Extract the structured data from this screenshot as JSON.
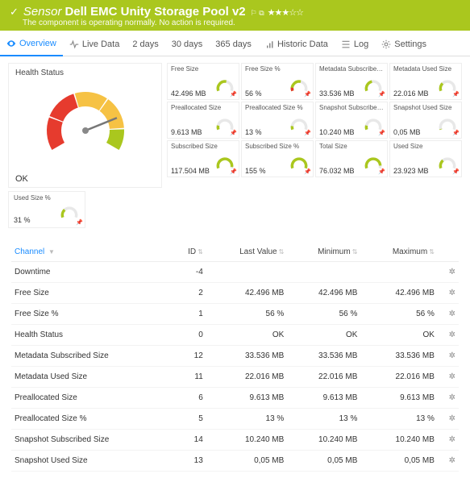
{
  "header": {
    "sensor_prefix": "Sensor",
    "title": "Dell EMC Unity Storage Pool v2",
    "sup": "⚐ ⧉",
    "stars": "★★★☆☆",
    "subtitle": "The component is operating normally. No action is required."
  },
  "tabs": {
    "overview": "Overview",
    "live": "Live Data",
    "days2": "2 days",
    "days30": "30 days",
    "days365": "365 days",
    "historic": "Historic Data",
    "log": "Log",
    "settings": "Settings"
  },
  "health": {
    "title": "Health Status",
    "status": "OK",
    "gauge": {
      "segments": [
        {
          "start": -210,
          "end": -160,
          "color": "#e63b2e"
        },
        {
          "start": -158,
          "end": -108,
          "color": "#e63b2e"
        },
        {
          "start": -106,
          "end": -56,
          "color": "#f6c244"
        },
        {
          "start": -54,
          "end": -4,
          "color": "#f6c244"
        },
        {
          "start": -2,
          "end": 30,
          "color": "#aac71e"
        }
      ],
      "needle_angle": -22
    }
  },
  "metrics": [
    {
      "title": "Free Size",
      "value": "42.496 MB",
      "frac": 0.55,
      "warn": false
    },
    {
      "title": "Free Size %",
      "value": "56 %",
      "frac": 0.56,
      "warn": true
    },
    {
      "title": "Metadata Subscribed Size",
      "value": "33.536 MB",
      "frac": 0.45,
      "warn": false
    },
    {
      "title": "Metadata Used Size",
      "value": "22.016 MB",
      "frac": 0.3,
      "warn": false
    },
    {
      "title": "Preallocated Size",
      "value": "9.613 MB",
      "frac": 0.15,
      "warn": false
    },
    {
      "title": "Preallocated Size %",
      "value": "13 %",
      "frac": 0.13,
      "warn": false
    },
    {
      "title": "Snapshot Subscribed Size",
      "value": "10.240 MB",
      "frac": 0.15,
      "warn": false
    },
    {
      "title": "Snapshot Used Size",
      "value": "0,05 MB",
      "frac": 0.02,
      "warn": false
    },
    {
      "title": "Subscribed Size",
      "value": "117.504 MB",
      "frac": 0.95,
      "warn": false
    },
    {
      "title": "Subscribed Size %",
      "value": "155 %",
      "frac": 1.0,
      "warn": false
    },
    {
      "title": "Total Size",
      "value": "76.032 MB",
      "frac": 0.9,
      "warn": false
    },
    {
      "title": "Used Size",
      "value": "23.923 MB",
      "frac": 0.32,
      "warn": false
    }
  ],
  "used_pct": {
    "title": "Used Size %",
    "value": "31 %",
    "frac": 0.31
  },
  "table": {
    "headers": {
      "channel": "Channel",
      "id": "ID",
      "last": "Last Value",
      "min": "Minimum",
      "max": "Maximum"
    },
    "rows": [
      {
        "channel": "Downtime",
        "id": "-4",
        "last": "",
        "min": "",
        "max": ""
      },
      {
        "channel": "Free Size",
        "id": "2",
        "last": "42.496 MB",
        "min": "42.496 MB",
        "max": "42.496 MB"
      },
      {
        "channel": "Free Size %",
        "id": "1",
        "last": "56 %",
        "min": "56 %",
        "max": "56 %"
      },
      {
        "channel": "Health Status",
        "id": "0",
        "last": "OK",
        "min": "OK",
        "max": "OK"
      },
      {
        "channel": "Metadata Subscribed Size",
        "id": "12",
        "last": "33.536 MB",
        "min": "33.536 MB",
        "max": "33.536 MB"
      },
      {
        "channel": "Metadata Used Size",
        "id": "11",
        "last": "22.016 MB",
        "min": "22.016 MB",
        "max": "22.016 MB"
      },
      {
        "channel": "Preallocated Size",
        "id": "6",
        "last": "9.613 MB",
        "min": "9.613 MB",
        "max": "9.613 MB"
      },
      {
        "channel": "Preallocated Size %",
        "id": "5",
        "last": "13 %",
        "min": "13 %",
        "max": "13 %"
      },
      {
        "channel": "Snapshot Subscribed Size",
        "id": "14",
        "last": "10.240 MB",
        "min": "10.240 MB",
        "max": "10.240 MB"
      },
      {
        "channel": "Snapshot Used Size",
        "id": "13",
        "last": "0,05 MB",
        "min": "0,05 MB",
        "max": "0,05 MB"
      }
    ]
  },
  "colors": {
    "accent": "#aac71e",
    "track": "#e8e8e8",
    "warn": "#e63b2e"
  }
}
